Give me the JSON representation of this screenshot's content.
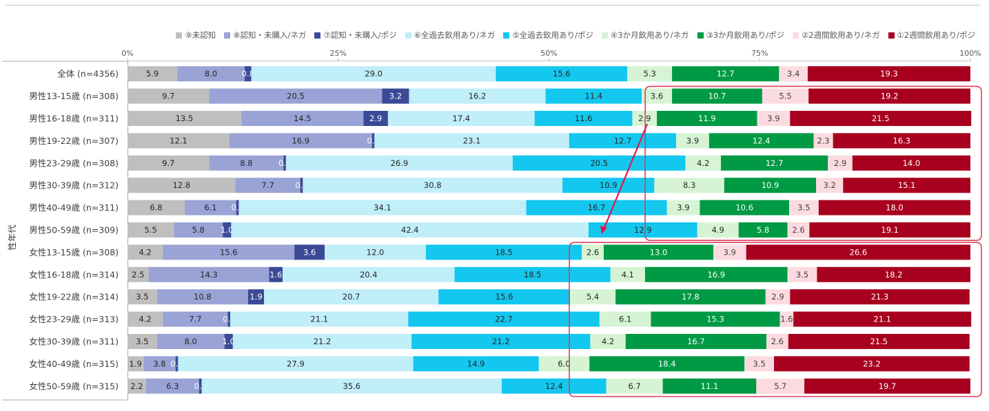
{
  "chart_data": {
    "type": "bar",
    "orientation": "horizontal",
    "stacked": "percent",
    "title": "",
    "xlabel": "",
    "ylabel": "性年代",
    "xlim": [
      0,
      100
    ],
    "x_ticks": [
      "0%",
      "25%",
      "50%",
      "75%",
      "100%"
    ],
    "legend_position": "top-right",
    "categories": [
      "全体 (n=4356)",
      "男性13-15歳 (n=308)",
      "男性16-18歳 (n=311)",
      "男性19-22歳 (n=307)",
      "男性23-29歳 (n=308)",
      "男性30-39歳 (n=312)",
      "男性40-49歳 (n=311)",
      "男性50-59歳 (n=309)",
      "女性13-15歳 (n=308)",
      "女性16-18歳 (n=314)",
      "女性19-22歳 (n=314)",
      "女性23-29歳 (n=313)",
      "女性30-39歳 (n=311)",
      "女性40-49歳 (n=315)",
      "女性50-59歳 (n=315)"
    ],
    "series": [
      {
        "name": "⑨未認知",
        "color": "#bfbfbf",
        "label_color": "#262626",
        "values": [
          5.9,
          9.7,
          13.5,
          12.1,
          9.7,
          12.8,
          6.8,
          5.5,
          4.2,
          2.5,
          3.5,
          4.2,
          3.5,
          1.9,
          2.2
        ]
      },
      {
        "name": "⑧認知・未購入/ネガ",
        "color": "#99a3d6",
        "label_color": "#262626",
        "values": [
          8.0,
          20.5,
          14.5,
          16.9,
          8.8,
          7.7,
          6.1,
          5.8,
          15.6,
          14.3,
          10.8,
          7.7,
          8.0,
          3.8,
          6.3
        ]
      },
      {
        "name": "⑦認知・未購入/ポジ",
        "color": "#3b4a96",
        "label_color": "#ffffff",
        "values": [
          0.8,
          3.2,
          2.9,
          0.3,
          0.3,
          0.3,
          0.3,
          1.0,
          3.6,
          1.6,
          1.9,
          0.3,
          1.0,
          0.3,
          0.3
        ]
      },
      {
        "name": "⑥全過去飲用あり/ネガ",
        "color": "#c0eef9",
        "label_color": "#262626",
        "values": [
          29.0,
          16.2,
          17.4,
          23.1,
          26.9,
          30.8,
          34.1,
          42.4,
          12.0,
          20.4,
          20.7,
          21.1,
          21.2,
          27.9,
          35.6
        ]
      },
      {
        "name": "⑤全過去飲用あり/ポジ",
        "color": "#13c7ee",
        "label_color": "#262626",
        "values": [
          15.6,
          11.4,
          11.6,
          12.7,
          20.5,
          10.9,
          16.7,
          12.9,
          18.5,
          18.5,
          15.6,
          22.7,
          21.2,
          14.9,
          12.4
        ]
      },
      {
        "name": "④3か月飲用あり/ネガ",
        "color": "#d6f4d4",
        "label_color": "#262626",
        "values": [
          5.3,
          3.6,
          2.9,
          3.9,
          4.2,
          8.3,
          3.9,
          4.9,
          2.6,
          4.1,
          5.4,
          6.1,
          4.2,
          6.0,
          6.7
        ]
      },
      {
        "name": "③3か月飲用あり/ポジ",
        "color": "#009a44",
        "label_color": "#ffffff",
        "values": [
          12.7,
          10.7,
          11.9,
          12.4,
          12.7,
          10.9,
          10.6,
          5.8,
          13.0,
          16.9,
          17.8,
          15.3,
          16.7,
          18.4,
          11.1
        ]
      },
      {
        "name": "②2週間飲用あり/ネガ",
        "color": "#fcdbe0",
        "label_color": "#404040",
        "values": [
          3.4,
          5.5,
          3.9,
          2.3,
          2.9,
          3.2,
          3.5,
          2.6,
          3.9,
          3.5,
          2.9,
          1.6,
          2.6,
          3.5,
          5.7
        ]
      },
      {
        "name": "①2週間飲用あり/ポジ",
        "color": "#a8001f",
        "label_color": "#ffffff",
        "values": [
          19.3,
          19.2,
          21.5,
          16.3,
          14.0,
          15.1,
          18.0,
          19.1,
          26.6,
          18.2,
          21.3,
          21.1,
          21.5,
          23.2,
          19.7
        ]
      }
    ],
    "legend_order": [
      0,
      1,
      2,
      3,
      4,
      5,
      6,
      7,
      8
    ],
    "annotations": {
      "highlight_color": "#dc3c5a",
      "arrow_color": "#e0194a",
      "highlight_groups": [
        {
          "rows": [
            "男性13-15歳 (n=308)",
            "男性50-59歳 (n=309)"
          ],
          "from_pct": 61.5
        },
        {
          "rows": [
            "女性13-15歳 (n=308)",
            "女性50-59歳 (n=315)"
          ],
          "from_pct": 52.5
        }
      ]
    }
  }
}
